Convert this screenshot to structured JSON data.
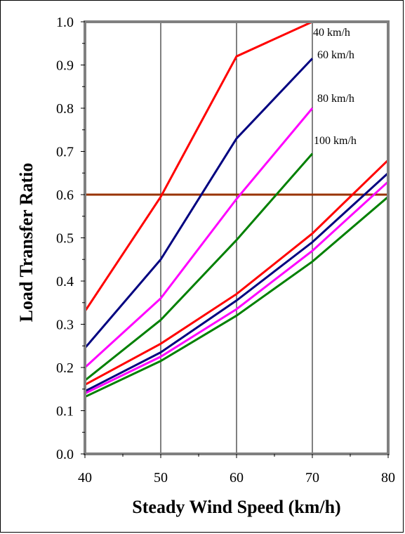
{
  "chart_data": {
    "type": "line",
    "title": "",
    "xlabel": "Steady Wind Speed (km/h)",
    "ylabel": "Load Transfer Ratio",
    "xlim": [
      40,
      80
    ],
    "ylim": [
      0.0,
      1.0
    ],
    "x_ticks": [
      "40",
      "50",
      "60",
      "70",
      "80"
    ],
    "y_ticks": [
      "0.0",
      "0.1",
      "0.2",
      "0.3",
      "0.4",
      "0.5",
      "0.6",
      "0.7",
      "0.8",
      "0.9",
      "1.0"
    ],
    "grid": "vertical",
    "threshold": {
      "y": 0.6,
      "color": "#993300"
    },
    "series": [
      {
        "name": "40 km/h",
        "color": "#ff0000",
        "x": [
          40,
          50,
          60,
          70
        ],
        "y": [
          0.33,
          0.595,
          0.92,
          1.0
        ]
      },
      {
        "name": "60 km/h",
        "color": "#000080",
        "x": [
          40,
          50,
          60,
          70
        ],
        "y": [
          0.245,
          0.45,
          0.73,
          0.915
        ]
      },
      {
        "name": "80 km/h",
        "color": "#ff00ff",
        "x": [
          40,
          50,
          60,
          70
        ],
        "y": [
          0.2,
          0.36,
          0.59,
          0.8
        ]
      },
      {
        "name": "100 km/h",
        "color": "#008000",
        "x": [
          40,
          50,
          60,
          70
        ],
        "y": [
          0.17,
          0.31,
          0.495,
          0.695
        ]
      },
      {
        "color": "#ff0000",
        "x": [
          40,
          50,
          60,
          70,
          80
        ],
        "y": [
          0.16,
          0.255,
          0.37,
          0.51,
          0.68
        ]
      },
      {
        "color": "#000080",
        "x": [
          40,
          50,
          60,
          70,
          80
        ],
        "y": [
          0.145,
          0.235,
          0.355,
          0.49,
          0.65
        ]
      },
      {
        "color": "#ff00ff",
        "x": [
          40,
          50,
          60,
          70,
          80
        ],
        "y": [
          0.14,
          0.225,
          0.335,
          0.47,
          0.63
        ]
      },
      {
        "color": "#008000",
        "x": [
          40,
          50,
          60,
          70,
          80
        ],
        "y": [
          0.132,
          0.215,
          0.32,
          0.445,
          0.595
        ]
      }
    ],
    "series_labels": [
      "40 km/h",
      "60 km/h",
      "80 km/h",
      "100 km/h"
    ]
  }
}
